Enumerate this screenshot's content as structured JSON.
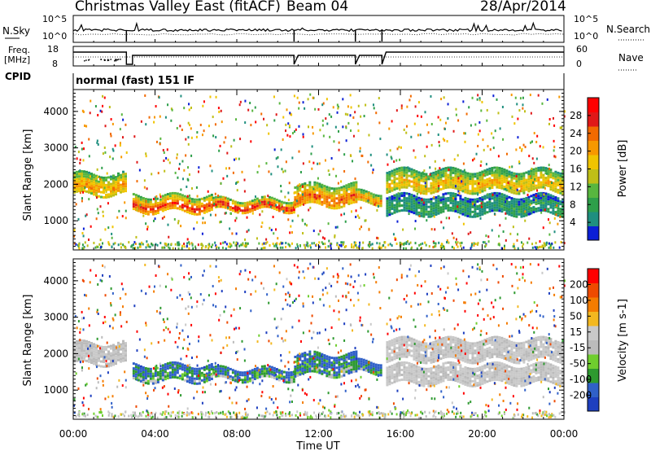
{
  "header": {
    "station": "Christmas Valley East (fitACF)",
    "beam": "Beam 04",
    "date": "28/Apr/2014"
  },
  "nsky_panel": {
    "left_label": "N.Sky",
    "left_ticks": [
      "10^5",
      "10^0"
    ],
    "right_label": "N.Search",
    "right_ticks": [
      "10^5",
      "10^0"
    ]
  },
  "freq_panel": {
    "left_label_1": "Freq.",
    "left_label_2": "[MHz]",
    "left_ticks": [
      "18",
      "8"
    ],
    "right_label": "Nave",
    "right_ticks": [
      "60",
      "0"
    ]
  },
  "cpid": {
    "label": "CPID",
    "mode": "normal (fast) 151 IF"
  },
  "colors": {
    "scale": [
      "#0b1fd6",
      "#1f8f7f",
      "#2e9f4a",
      "#58b63f",
      "#bfbf17",
      "#f0c400",
      "#f79800",
      "#f26a00",
      "#e01818",
      "#ff0000"
    ],
    "velocity": [
      "#1e3fbf",
      "#3060c8",
      "#2e9a30",
      "#6fce2e",
      "#bbbbbb",
      "#c9c9c9",
      "#f3b820",
      "#f47c00",
      "#ee4a00",
      "#ff0000"
    ]
  },
  "chart_data": [
    {
      "type": "heatmap",
      "name": "power",
      "ylabel": "Slant Range [km]",
      "xlabel": "",
      "x_ticks": [
        "00:00",
        "04:00",
        "08:00",
        "12:00",
        "16:00",
        "20:00",
        "00:00"
      ],
      "y_ticks": [
        1000,
        2000,
        3000,
        4000
      ],
      "ylim": [
        200,
        4600
      ],
      "colorbar_label": "Power [dB]",
      "colorbar_ticks": [
        28,
        24,
        20,
        16,
        12,
        8,
        4
      ],
      "bands": [
        {
          "t": [
            0.0,
            2.6
          ],
          "range": [
            1700,
            2300
          ],
          "level": 20
        },
        {
          "t": [
            2.9,
            6.8
          ],
          "range": [
            1250,
            1700
          ],
          "level": 26
        },
        {
          "t": [
            6.8,
            10.8
          ],
          "range": [
            1300,
            1600
          ],
          "level": 28
        },
        {
          "t": [
            10.8,
            13.8
          ],
          "range": [
            1400,
            2000
          ],
          "level": 24
        },
        {
          "t": [
            13.8,
            15.0
          ],
          "range": [
            1500,
            1800
          ],
          "level": 22
        },
        {
          "t": [
            15.3,
            24.0
          ],
          "range": [
            1800,
            2400
          ],
          "level": 18
        },
        {
          "t": [
            15.3,
            24.0
          ],
          "range": [
            1200,
            1700
          ],
          "level": 6
        }
      ]
    },
    {
      "type": "heatmap",
      "name": "velocity",
      "ylabel": "Slant Range [km]",
      "xlabel": "Time UT",
      "x_ticks": [
        "00:00",
        "04:00",
        "08:00",
        "12:00",
        "16:00",
        "20:00",
        "00:00"
      ],
      "y_ticks": [
        1000,
        2000,
        3000,
        4000
      ],
      "ylim": [
        200,
        4600
      ],
      "colorbar_label": "Velocity [m s-1]",
      "colorbar_ticks": [
        200,
        100,
        50,
        15,
        -15,
        -50,
        -100,
        -200
      ]
    }
  ]
}
